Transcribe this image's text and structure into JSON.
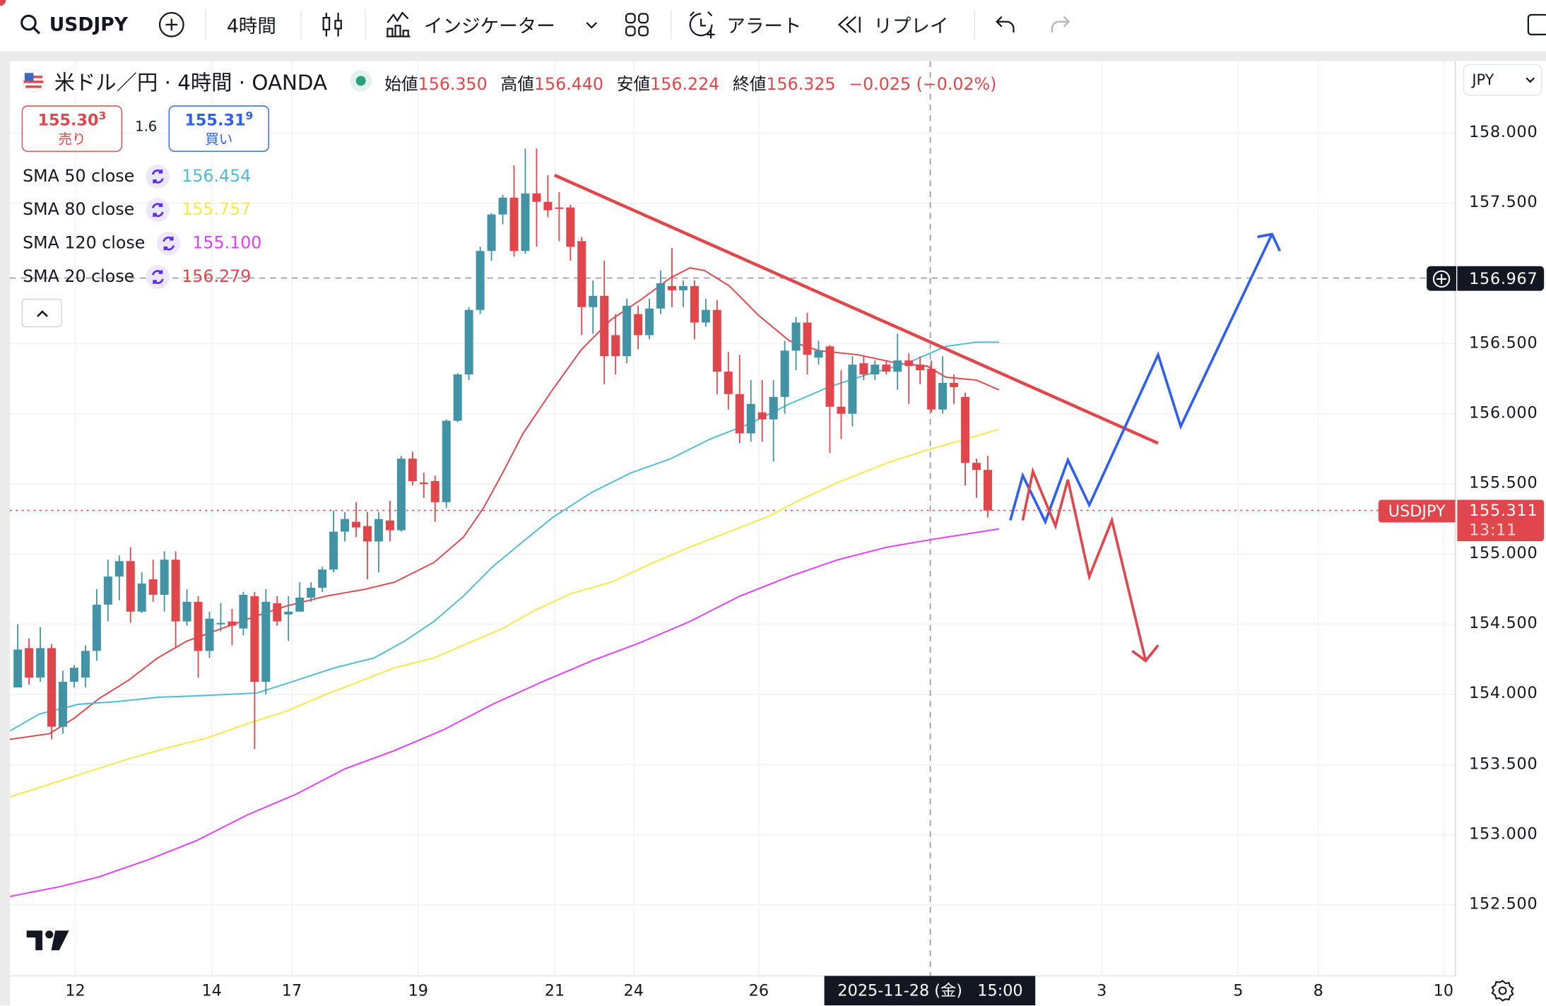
{
  "toolbar": {
    "symbol": "USDJPY",
    "interval": "4時間",
    "indicators_label": "インジケーター",
    "alert_label": "アラート",
    "replay_label": "リプレイ",
    "icons": [
      "search-icon",
      "add-symbol-icon",
      "candles-icon",
      "indicators-icon",
      "chevron-down-icon",
      "layout-grid-icon",
      "alert-clock-icon",
      "replay-icon",
      "undo-icon",
      "redo-icon",
      "fullscreen-icon"
    ]
  },
  "legend": {
    "title": "米ドル／円 · 4時間 · OANDA",
    "open_label": "始値",
    "open": "156.350",
    "high_label": "高値",
    "high": "156.440",
    "low_label": "安値",
    "low": "156.224",
    "close_label": "終値",
    "close": "156.325",
    "change": "−0.025 (−0.02%)",
    "sell_price_main": "155.30",
    "sell_price_sup": "3",
    "sell_label": "売り",
    "spread": "1.6",
    "buy_price_main": "155.31",
    "buy_price_sup": "9",
    "buy_label": "買い"
  },
  "indicators": [
    {
      "label": "SMA 50 close",
      "value": "156.454",
      "color": "#4fbcd6"
    },
    {
      "label": "SMA 80 close",
      "value": "155.757",
      "color": "#f7e84a"
    },
    {
      "label": "SMA 120 close",
      "value": "155.100",
      "color": "#e040fb"
    },
    {
      "label": "SMA 20 close",
      "value": "156.279",
      "color": "#e0474c"
    }
  ],
  "price_axis": {
    "currency": "JPY",
    "ticks": [
      "158.000",
      "157.500",
      "156.500",
      "156.000",
      "155.500",
      "155.000",
      "154.500",
      "154.000",
      "153.500",
      "153.000",
      "152.500"
    ],
    "crosshair_price": "156.967",
    "last_price": "155.311",
    "countdown": "13:11",
    "symbol_tag": "USDJPY"
  },
  "time_axis": {
    "ticks": [
      {
        "label": "12",
        "bar": 5.1
      },
      {
        "label": "14",
        "bar": 17.2
      },
      {
        "label": "17",
        "bar": 24.3
      },
      {
        "label": "19",
        "bar": 35.5
      },
      {
        "label": "21",
        "bar": 47.6
      },
      {
        "label": "24",
        "bar": 54.6
      },
      {
        "label": "26",
        "bar": 65.7
      },
      {
        "label": "3",
        "bar": 96.1
      },
      {
        "label": "5",
        "bar": 108.2
      },
      {
        "label": "8",
        "bar": 115.3
      },
      {
        "label": "10",
        "bar": 126.4
      }
    ],
    "crosshair_label": "2025-11-28 (金)   15:00",
    "crosshair_bar": 80.9
  },
  "chart_data": {
    "type": "candlestick",
    "ylim": [
      152.2,
      158.5
    ],
    "grid": true,
    "colors": {
      "up": "#4293a4",
      "down": "#e0474c"
    },
    "candles_ohlc": [
      [
        154.05,
        154.5,
        154.05,
        154.32
      ],
      [
        154.33,
        154.4,
        154.07,
        154.12
      ],
      [
        154.12,
        154.48,
        154.09,
        154.33
      ],
      [
        154.33,
        154.36,
        153.68,
        153.77
      ],
      [
        153.77,
        154.17,
        153.72,
        154.09
      ],
      [
        154.09,
        154.21,
        154.05,
        154.19
      ],
      [
        154.12,
        154.35,
        154.05,
        154.31
      ],
      [
        154.31,
        154.75,
        154.24,
        154.64
      ],
      [
        154.64,
        154.96,
        154.52,
        154.84
      ],
      [
        154.84,
        154.99,
        154.67,
        154.95
      ],
      [
        154.95,
        155.05,
        154.51,
        154.59
      ],
      [
        154.59,
        154.87,
        154.58,
        154.79
      ],
      [
        154.82,
        154.96,
        154.66,
        154.71
      ],
      [
        154.71,
        155.02,
        154.59,
        154.96
      ],
      [
        154.96,
        155.02,
        154.33,
        154.52
      ],
      [
        154.52,
        154.75,
        154.49,
        154.66
      ],
      [
        154.66,
        154.7,
        154.12,
        154.31
      ],
      [
        154.31,
        154.59,
        154.26,
        154.54
      ],
      [
        154.5,
        154.65,
        154.45,
        154.51
      ],
      [
        154.52,
        154.61,
        154.35,
        154.49
      ],
      [
        154.47,
        154.73,
        154.42,
        154.71
      ],
      [
        154.7,
        154.73,
        153.61,
        154.09
      ],
      [
        154.09,
        154.75,
        154.0,
        154.66
      ],
      [
        154.65,
        154.7,
        154.49,
        154.52
      ],
      [
        154.57,
        154.7,
        154.38,
        154.59
      ],
      [
        154.59,
        154.8,
        154.59,
        154.69
      ],
      [
        154.69,
        154.8,
        154.66,
        154.76
      ],
      [
        154.76,
        154.91,
        154.73,
        154.89
      ],
      [
        154.89,
        155.31,
        154.87,
        155.16
      ],
      [
        155.16,
        155.3,
        155.09,
        155.25
      ],
      [
        155.23,
        155.37,
        155.12,
        155.19
      ],
      [
        155.2,
        155.3,
        154.82,
        155.09
      ],
      [
        155.09,
        155.3,
        154.87,
        155.25
      ],
      [
        155.24,
        155.38,
        155.09,
        155.17
      ],
      [
        155.17,
        155.7,
        155.16,
        155.68
      ],
      [
        155.68,
        155.73,
        155.49,
        155.52
      ],
      [
        155.51,
        155.58,
        155.4,
        155.5
      ],
      [
        155.52,
        155.56,
        155.23,
        155.37
      ],
      [
        155.37,
        155.96,
        155.33,
        155.95
      ],
      [
        155.95,
        156.29,
        155.94,
        156.28
      ],
      [
        156.28,
        156.76,
        156.24,
        156.74
      ],
      [
        156.74,
        157.19,
        156.71,
        157.16
      ],
      [
        157.16,
        157.43,
        157.09,
        157.42
      ],
      [
        157.42,
        157.56,
        157.35,
        157.54
      ],
      [
        157.54,
        157.77,
        157.12,
        157.16
      ],
      [
        157.16,
        157.89,
        157.14,
        157.57
      ],
      [
        157.57,
        157.89,
        157.19,
        157.51
      ],
      [
        157.51,
        157.7,
        157.4,
        157.45
      ],
      [
        157.47,
        157.58,
        157.23,
        157.46
      ],
      [
        157.47,
        157.49,
        157.09,
        157.19
      ],
      [
        157.23,
        157.26,
        156.56,
        156.76
      ],
      [
        156.76,
        156.95,
        156.57,
        156.84
      ],
      [
        156.84,
        157.09,
        156.21,
        156.41
      ],
      [
        156.56,
        156.71,
        156.28,
        156.41
      ],
      [
        156.41,
        156.82,
        156.36,
        156.77
      ],
      [
        156.71,
        156.77,
        156.46,
        156.56
      ],
      [
        156.56,
        156.82,
        156.53,
        156.75
      ],
      [
        156.75,
        157.02,
        156.71,
        156.93
      ],
      [
        156.91,
        157.18,
        156.76,
        156.88
      ],
      [
        156.88,
        156.95,
        156.76,
        156.91
      ],
      [
        156.91,
        156.95,
        156.53,
        156.65
      ],
      [
        156.65,
        156.82,
        156.62,
        156.74
      ],
      [
        156.74,
        156.81,
        156.14,
        156.3
      ],
      [
        156.3,
        156.44,
        156.03,
        156.14
      ],
      [
        156.14,
        156.42,
        155.79,
        155.86
      ],
      [
        155.86,
        156.24,
        155.8,
        156.07
      ],
      [
        156.01,
        156.24,
        155.8,
        155.96
      ],
      [
        155.96,
        156.24,
        155.66,
        156.12
      ],
      [
        156.12,
        156.52,
        156.0,
        156.45
      ],
      [
        156.45,
        156.69,
        156.31,
        156.65
      ],
      [
        156.65,
        156.72,
        156.28,
        156.42
      ],
      [
        156.4,
        156.52,
        156.35,
        156.45
      ],
      [
        156.48,
        156.49,
        155.72,
        156.05
      ],
      [
        156.05,
        156.31,
        155.82,
        156.0
      ],
      [
        156.0,
        156.41,
        155.91,
        156.35
      ],
      [
        156.36,
        156.41,
        156.24,
        156.28
      ],
      [
        156.28,
        156.38,
        156.24,
        156.35
      ],
      [
        156.35,
        156.38,
        156.28,
        156.3
      ],
      [
        156.3,
        156.57,
        156.17,
        156.38
      ],
      [
        156.38,
        156.43,
        156.07,
        156.34
      ],
      [
        156.35,
        156.41,
        156.21,
        156.31
      ],
      [
        156.32,
        156.38,
        156.01,
        156.03
      ],
      [
        156.03,
        156.41,
        156.0,
        156.22
      ],
      [
        156.22,
        156.28,
        156.07,
        156.19
      ],
      [
        156.12,
        156.15,
        155.49,
        155.65
      ],
      [
        155.65,
        155.68,
        155.4,
        155.6
      ],
      [
        155.6,
        155.7,
        155.26,
        155.31
      ]
    ],
    "series": [
      {
        "name": "SMA 20 close",
        "color": "#e0474c",
        "points": [
          [
            -0.7,
            153.68
          ],
          [
            2.8,
            153.72
          ],
          [
            5.0,
            153.83
          ],
          [
            7.2,
            153.97
          ],
          [
            9.8,
            154.1
          ],
          [
            12.4,
            154.26
          ],
          [
            15.0,
            154.38
          ],
          [
            18.1,
            154.47
          ],
          [
            21.2,
            154.56
          ],
          [
            23.8,
            154.63
          ],
          [
            27.3,
            154.7
          ],
          [
            30.8,
            154.75
          ],
          [
            33.4,
            154.8
          ],
          [
            36.9,
            154.94
          ],
          [
            39.5,
            155.12
          ],
          [
            41.3,
            155.33
          ],
          [
            43.0,
            155.58
          ],
          [
            44.8,
            155.86
          ],
          [
            47.4,
            156.17
          ],
          [
            50.0,
            156.46
          ],
          [
            52.6,
            156.67
          ],
          [
            55.2,
            156.81
          ],
          [
            57.9,
            156.97
          ],
          [
            59.6,
            157.04
          ],
          [
            60.9,
            157.02
          ],
          [
            63.1,
            156.91
          ],
          [
            65.7,
            156.7
          ],
          [
            68.4,
            156.52
          ],
          [
            71.0,
            156.45
          ],
          [
            74.5,
            156.42
          ],
          [
            78.0,
            156.36
          ],
          [
            80.6,
            156.34
          ],
          [
            82.3,
            156.26
          ],
          [
            85.0,
            156.24
          ],
          [
            87.0,
            156.17
          ]
        ]
      },
      {
        "name": "SMA 50 close",
        "color": "#4fbcd6",
        "points": [
          [
            -0.7,
            153.74
          ],
          [
            1.9,
            153.86
          ],
          [
            5.4,
            153.93
          ],
          [
            8.9,
            153.95
          ],
          [
            12.4,
            153.98
          ],
          [
            15.9,
            153.99
          ],
          [
            21.2,
            154.01
          ],
          [
            24.7,
            154.1
          ],
          [
            28.1,
            154.19
          ],
          [
            31.6,
            154.26
          ],
          [
            34.3,
            154.38
          ],
          [
            36.9,
            154.52
          ],
          [
            39.5,
            154.7
          ],
          [
            42.1,
            154.91
          ],
          [
            44.8,
            155.09
          ],
          [
            47.4,
            155.26
          ],
          [
            50.9,
            155.44
          ],
          [
            54.4,
            155.58
          ],
          [
            57.9,
            155.68
          ],
          [
            61.4,
            155.82
          ],
          [
            64.9,
            155.93
          ],
          [
            68.4,
            156.07
          ],
          [
            71.9,
            156.19
          ],
          [
            75.3,
            156.28
          ],
          [
            78.8,
            156.36
          ],
          [
            82.3,
            156.48
          ],
          [
            85.0,
            156.51
          ],
          [
            87.0,
            156.51
          ]
        ]
      },
      {
        "name": "SMA 80 close",
        "color": "#f7e84a",
        "points": [
          [
            -0.7,
            153.27
          ],
          [
            2.8,
            153.36
          ],
          [
            6.3,
            153.45
          ],
          [
            9.8,
            153.54
          ],
          [
            13.3,
            153.62
          ],
          [
            16.8,
            153.69
          ],
          [
            20.3,
            153.79
          ],
          [
            23.8,
            153.88
          ],
          [
            27.3,
            154.0
          ],
          [
            29.9,
            154.08
          ],
          [
            33.4,
            154.19
          ],
          [
            36.9,
            154.26
          ],
          [
            39.5,
            154.35
          ],
          [
            43.0,
            154.47
          ],
          [
            45.6,
            154.59
          ],
          [
            49.1,
            154.72
          ],
          [
            52.6,
            154.8
          ],
          [
            56.1,
            154.93
          ],
          [
            59.6,
            155.05
          ],
          [
            63.1,
            155.16
          ],
          [
            66.6,
            155.27
          ],
          [
            69.2,
            155.38
          ],
          [
            72.7,
            155.51
          ],
          [
            77.1,
            155.65
          ],
          [
            80.6,
            155.74
          ],
          [
            84.1,
            155.82
          ],
          [
            87.0,
            155.89
          ]
        ]
      },
      {
        "name": "SMA 120 close",
        "color": "#e040fb",
        "points": [
          [
            -0.7,
            152.56
          ],
          [
            3.7,
            152.63
          ],
          [
            7.2,
            152.7
          ],
          [
            11.5,
            152.82
          ],
          [
            15.9,
            152.96
          ],
          [
            20.3,
            153.14
          ],
          [
            24.7,
            153.29
          ],
          [
            29.0,
            153.47
          ],
          [
            33.4,
            153.6
          ],
          [
            37.8,
            153.75
          ],
          [
            42.1,
            153.93
          ],
          [
            46.5,
            154.09
          ],
          [
            50.9,
            154.24
          ],
          [
            55.2,
            154.37
          ],
          [
            59.6,
            154.52
          ],
          [
            64.0,
            154.7
          ],
          [
            68.4,
            154.84
          ],
          [
            72.7,
            154.96
          ],
          [
            77.1,
            155.05
          ],
          [
            81.5,
            155.11
          ],
          [
            87.0,
            155.18
          ]
        ]
      }
    ],
    "drawings": [
      {
        "kind": "trendline",
        "color": "#e0474c",
        "points": [
          [
            47.6,
            157.7
          ],
          [
            101.1,
            155.79
          ]
        ]
      },
      {
        "kind": "path-arrow",
        "color": "#2f5ff0",
        "points": [
          [
            88.0,
            155.24
          ],
          [
            89.1,
            155.56
          ],
          [
            91.1,
            155.23
          ],
          [
            93.1,
            155.67
          ],
          [
            95.0,
            155.35
          ],
          [
            101.1,
            156.42
          ],
          [
            103.1,
            155.91
          ],
          [
            111.2,
            157.28
          ]
        ],
        "head": [
          [
            109.9,
            157.26
          ],
          [
            111.9,
            157.16
          ]
        ]
      },
      {
        "kind": "path-arrow",
        "color": "#e0474c",
        "points": [
          [
            89.1,
            155.24
          ],
          [
            90.0,
            155.59
          ],
          [
            92.0,
            155.2
          ],
          [
            93.1,
            155.53
          ],
          [
            95.0,
            154.84
          ],
          [
            97.0,
            155.24
          ],
          [
            100.0,
            154.24
          ]
        ],
        "head": [
          [
            98.8,
            154.31
          ],
          [
            101.1,
            154.35
          ]
        ]
      }
    ]
  }
}
